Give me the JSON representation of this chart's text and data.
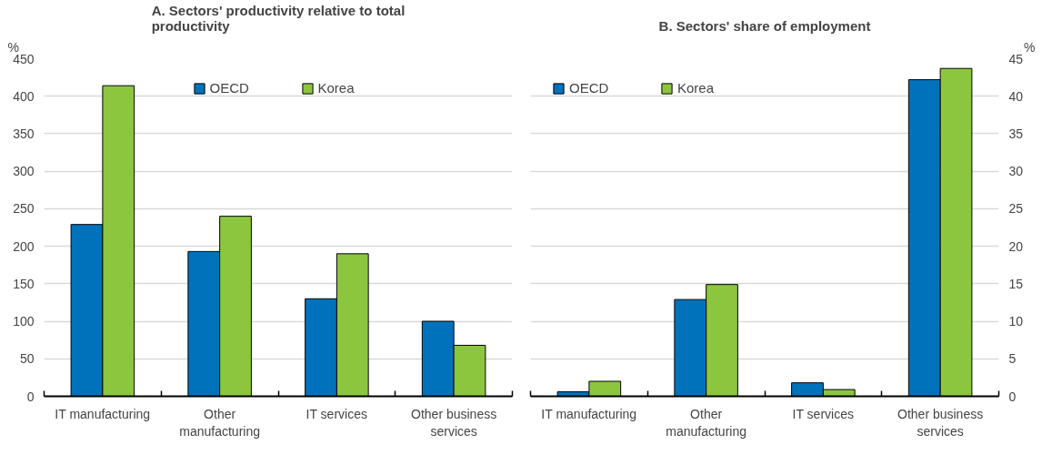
{
  "chart_data": [
    {
      "type": "bar",
      "title": "A. Sectors' productivity relative to total productivity",
      "ylabel": "%",
      "categories": [
        "IT manufacturing",
        "Other manufacturing",
        "IT services",
        "Other business services"
      ],
      "series": [
        {
          "name": "OECD",
          "color": "#0072bc",
          "values": [
            229,
            193,
            130,
            100
          ]
        },
        {
          "name": "Korea",
          "color": "#8cc63f",
          "values": [
            414,
            240,
            190,
            68
          ]
        }
      ],
      "ylim": [
        0,
        450
      ],
      "yticks": [
        0,
        50,
        100,
        150,
        200,
        250,
        300,
        350,
        400,
        450
      ],
      "grid": "y",
      "legend": "top"
    },
    {
      "type": "bar",
      "title": "B. Sectors' share of employment",
      "y2label": "%",
      "categories": [
        "IT manufacturing",
        "Other manufacturing",
        "IT services",
        "Other business services"
      ],
      "series": [
        {
          "name": "OECD",
          "color": "#0072bc",
          "values": [
            0.6,
            12.9,
            1.8,
            42.2
          ],
          "axis": "y2"
        },
        {
          "name": "Korea",
          "color": "#8cc63f",
          "values": [
            2.0,
            14.9,
            0.9,
            43.7
          ],
          "axis": "y2"
        }
      ],
      "y2lim": [
        0,
        45
      ],
      "y2ticks": [
        0,
        5,
        10,
        15,
        20,
        25,
        30,
        35,
        40,
        45
      ],
      "grid": "y",
      "legend": "top left"
    }
  ]
}
